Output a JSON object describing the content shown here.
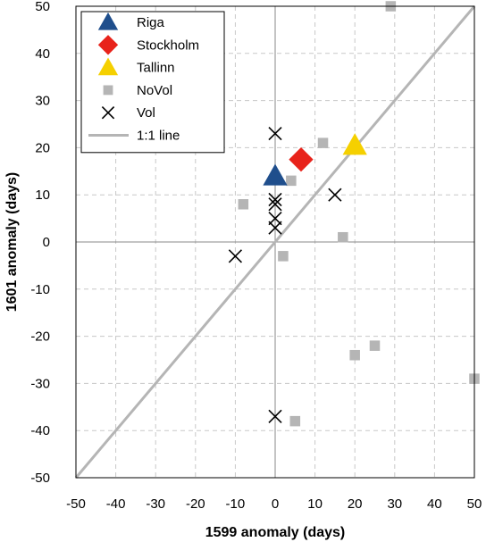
{
  "chart_data": {
    "type": "scatter",
    "title": "",
    "xlabel": "1599 anomaly (days)",
    "ylabel": "1601 anomaly (days)",
    "xlim": [
      -50,
      50
    ],
    "ylim": [
      -50,
      50
    ],
    "xticks": [
      -50,
      -40,
      -30,
      -20,
      -10,
      0,
      10,
      20,
      30,
      40,
      50
    ],
    "yticks": [
      -50,
      -40,
      -30,
      -20,
      -10,
      0,
      10,
      20,
      30,
      40,
      50
    ],
    "grid": "dashed",
    "legend_position": "top-left",
    "series": [
      {
        "name": "Riga",
        "marker": "triangle",
        "color": "#1f4e8c",
        "points": [
          {
            "x": 0,
            "y": 14
          }
        ]
      },
      {
        "name": "Stockholm",
        "marker": "diamond",
        "color": "#e8231b",
        "points": [
          {
            "x": 6.5,
            "y": 17.5
          }
        ]
      },
      {
        "name": "Tallinn",
        "marker": "triangle",
        "color": "#f5d000",
        "points": [
          {
            "x": 20,
            "y": 20.5
          }
        ]
      },
      {
        "name": "NoVol",
        "marker": "square",
        "color": "#b5b5b5",
        "points": [
          {
            "x": 29,
            "y": 50
          },
          {
            "x": 12,
            "y": 21
          },
          {
            "x": 4,
            "y": 13
          },
          {
            "x": -8,
            "y": 8
          },
          {
            "x": 17,
            "y": 1
          },
          {
            "x": 2,
            "y": -3
          },
          {
            "x": 20,
            "y": -24
          },
          {
            "x": 25,
            "y": -22
          },
          {
            "x": 50,
            "y": -29
          },
          {
            "x": 5,
            "y": -38
          }
        ]
      },
      {
        "name": "Vol",
        "marker": "x",
        "color": "#000000",
        "points": [
          {
            "x": 0,
            "y": 23
          },
          {
            "x": 0,
            "y": 9
          },
          {
            "x": 0,
            "y": 8
          },
          {
            "x": 0,
            "y": 5
          },
          {
            "x": 0,
            "y": 3
          },
          {
            "x": 15,
            "y": 10
          },
          {
            "x": -10,
            "y": -3
          },
          {
            "x": 0,
            "y": -37
          }
        ]
      },
      {
        "name": "1:1 line",
        "marker": "line",
        "color": "#b5b5b5",
        "points": [
          {
            "x": -50,
            "y": -50
          },
          {
            "x": 50,
            "y": 50
          }
        ]
      }
    ]
  }
}
